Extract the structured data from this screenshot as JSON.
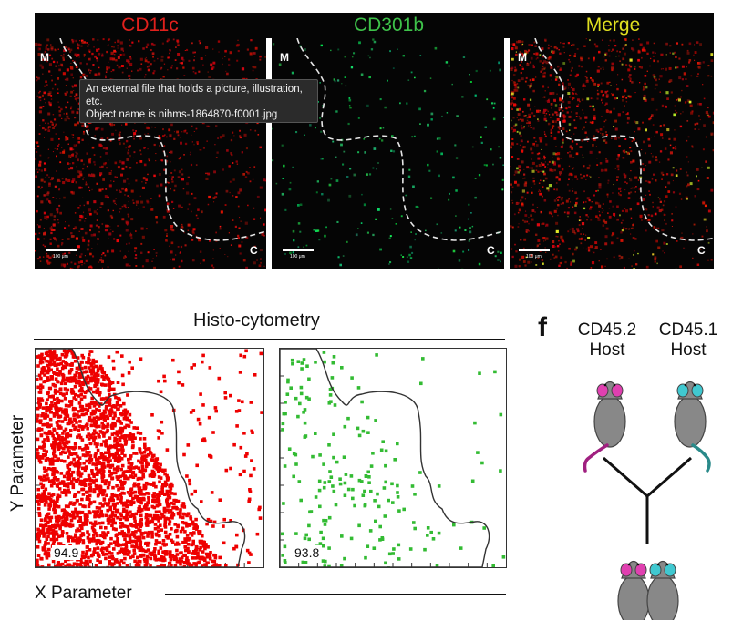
{
  "panels": {
    "titles": [
      "CD11c",
      "CD301b",
      "Merge"
    ],
    "title_colors": [
      "#e0201c",
      "#3ec24a",
      "#e0e020"
    ],
    "corner_top": "M",
    "corner_bottom": "C",
    "scalebar_label": "100 μm"
  },
  "tooltip": {
    "line1": "An external file that holds a picture, illustration,",
    "line2": "etc.",
    "line3": "Object name is nihms-1864870-f0001.jpg"
  },
  "histo": {
    "title": "Histo-cytometry",
    "y_label": "Y Parameter",
    "x_label": "X Parameter",
    "left_pct": "94.9",
    "right_pct": "93.8",
    "left_color": "#ee0000",
    "right_color": "#33bb33"
  },
  "panel_f": {
    "label": "f",
    "host_left": [
      "CD45.2",
      "Host"
    ],
    "host_right": [
      "CD45.1",
      "Host"
    ],
    "ear_left_color": "#e040b0",
    "ear_right_color": "#40c8d0"
  }
}
